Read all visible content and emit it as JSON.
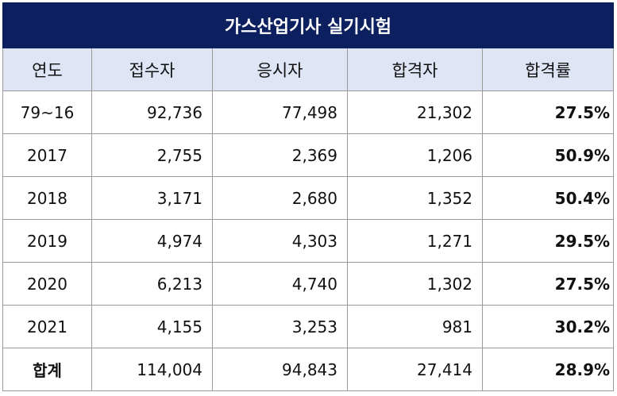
{
  "chart_data": {
    "type": "table",
    "title": "가스산업기사 실기시험",
    "columns": [
      "연도",
      "접수자",
      "응시자",
      "합격자",
      "합격률"
    ],
    "rows": [
      [
        "79~16",
        "92,736",
        "77,498",
        "21,302",
        "27.5%"
      ],
      [
        "2017",
        "2,755",
        "2,369",
        "1,206",
        "50.9%"
      ],
      [
        "2018",
        "3,171",
        "2,680",
        "1,352",
        "50.4%"
      ],
      [
        "2019",
        "4,974",
        "4,303",
        "1,271",
        "29.5%"
      ],
      [
        "2020",
        "6,213",
        "4,740",
        "1,302",
        "27.5%"
      ],
      [
        "2021",
        "4,155",
        "3,253",
        "981",
        "30.2%"
      ],
      [
        "합계",
        "114,004",
        "94,843",
        "27,414",
        "28.9%"
      ]
    ]
  },
  "colors": {
    "title_bg": "#0c2060",
    "header_bg": "#dfe5f5",
    "border": "#9a9a9a"
  }
}
